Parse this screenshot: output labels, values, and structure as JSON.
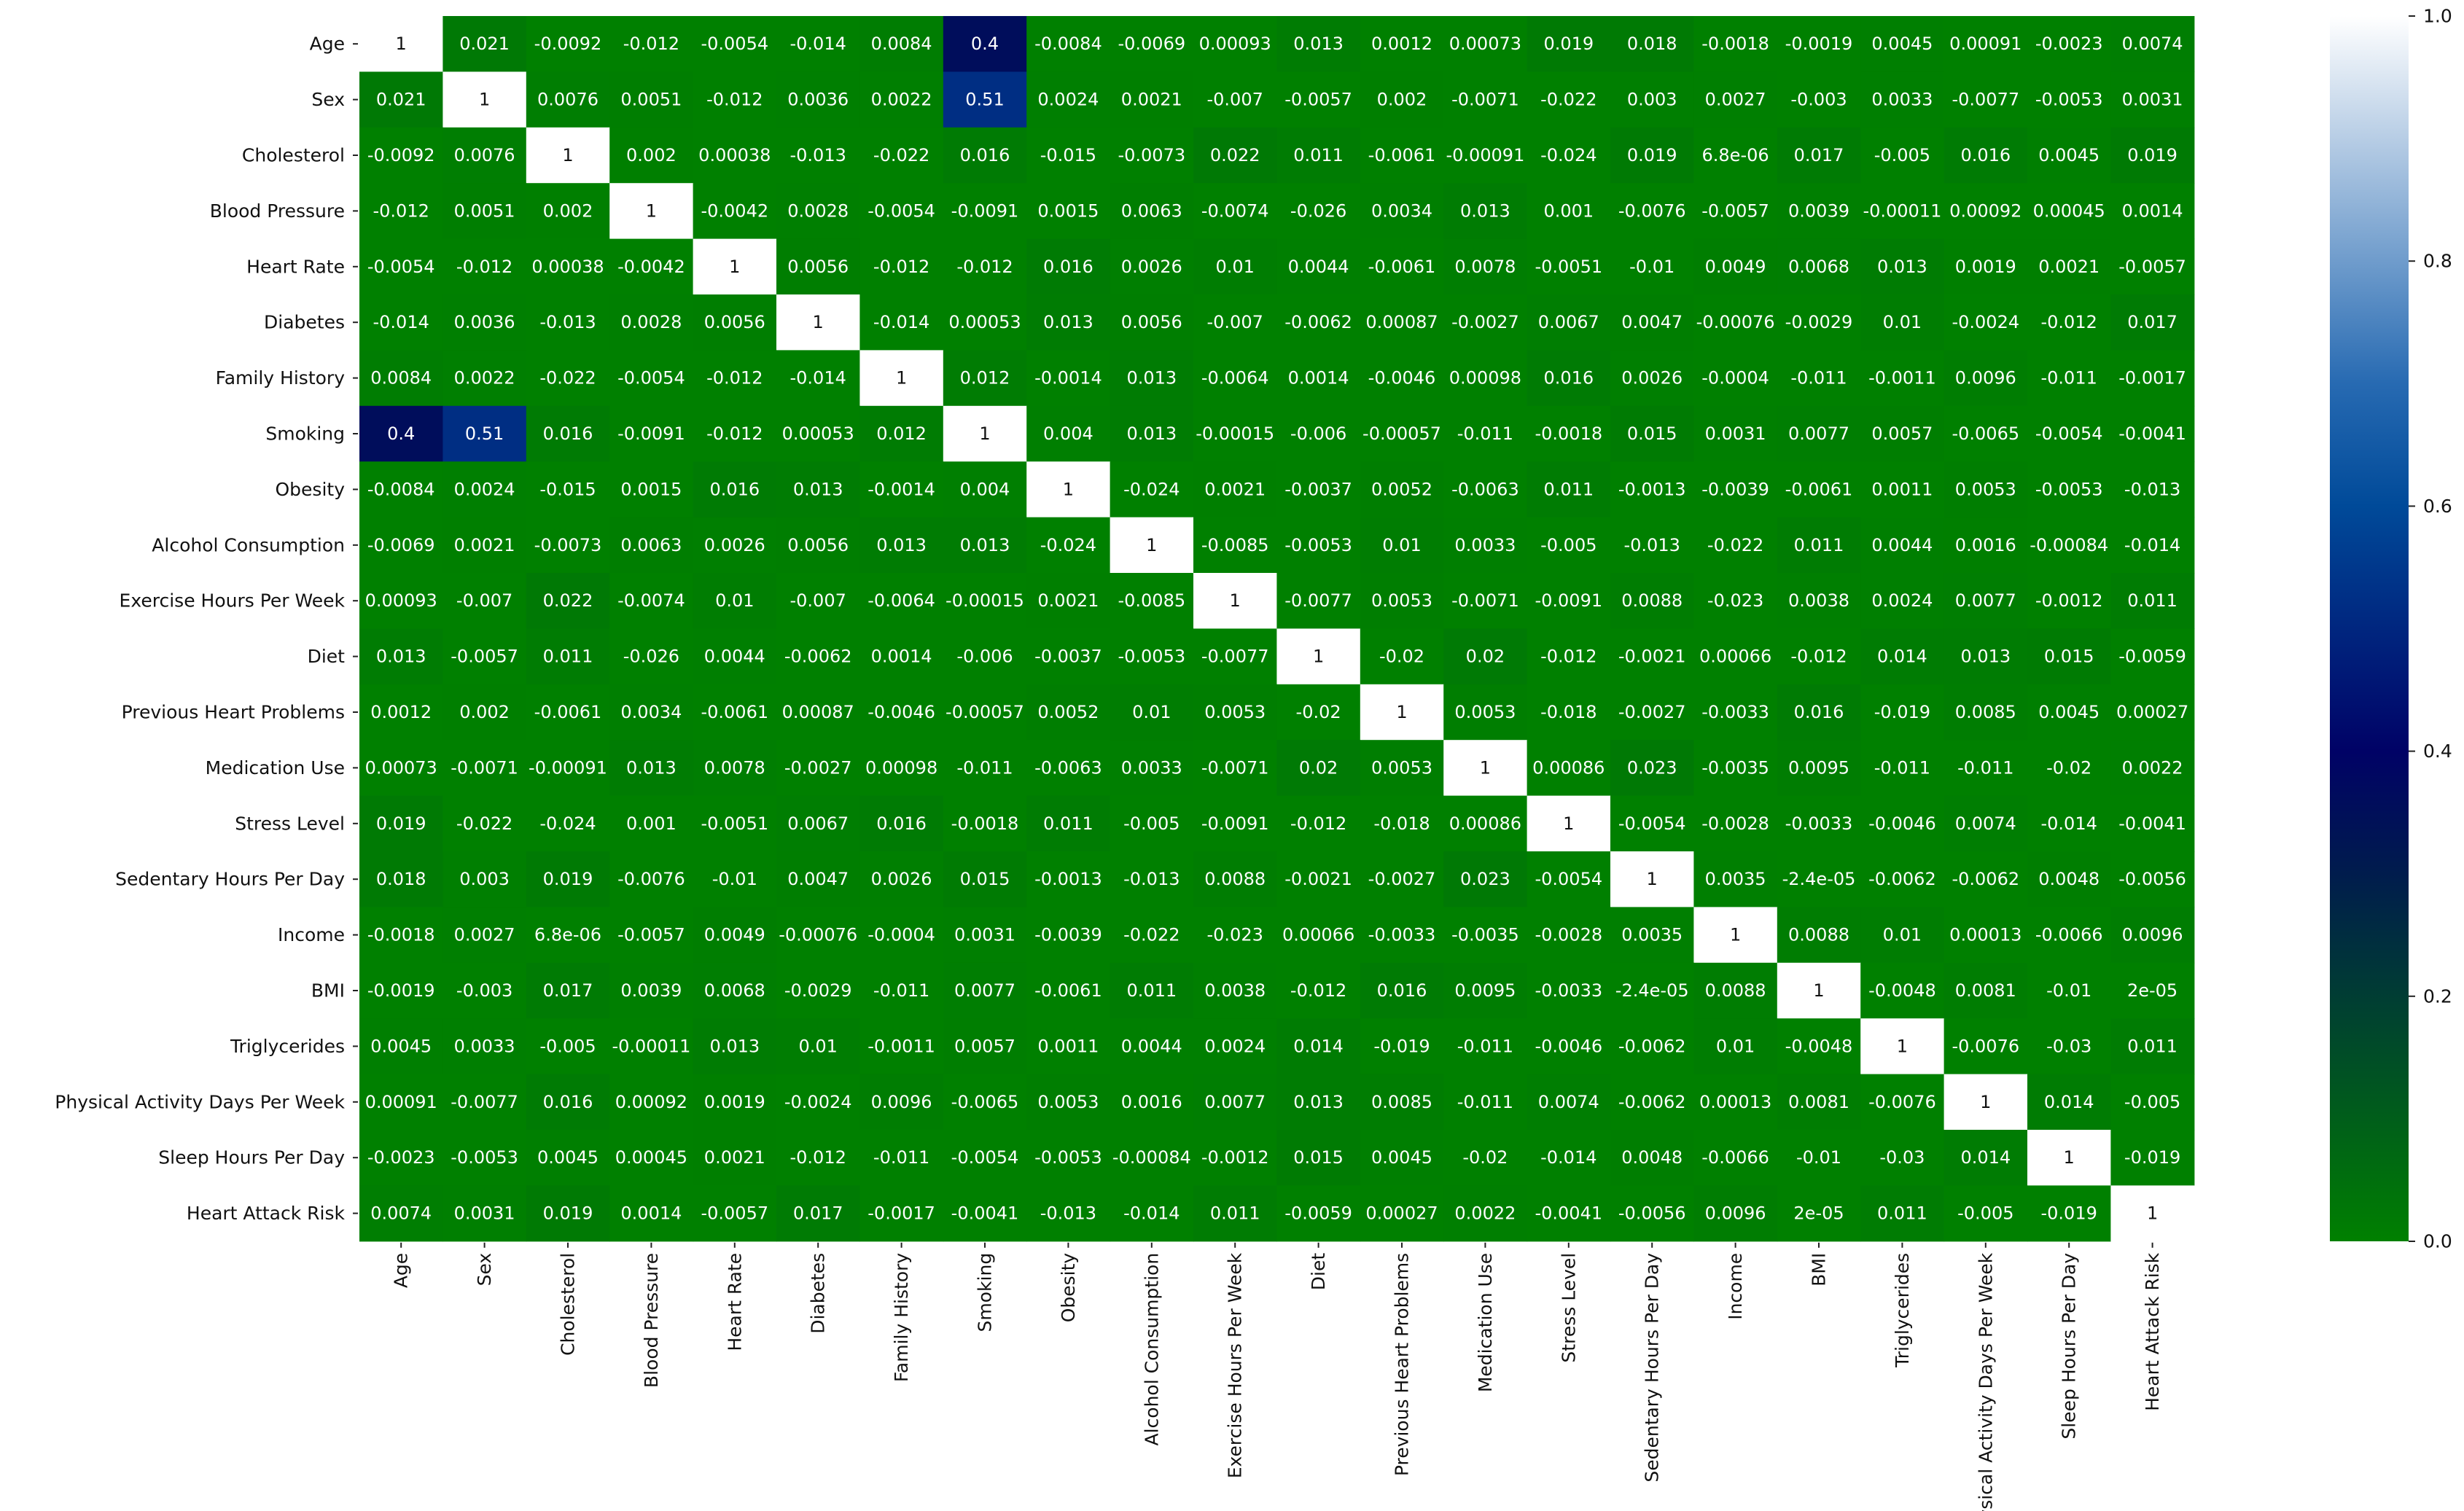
{
  "chart_data": {
    "type": "heatmap",
    "title": "",
    "variables": [
      "Age",
      "Sex",
      "Cholesterol",
      "Blood Pressure",
      "Heart Rate",
      "Diabetes",
      "Family History",
      "Smoking",
      "Obesity",
      "Alcohol Consumption",
      "Exercise Hours Per Week",
      "Diet",
      "Previous Heart Problems",
      "Medication Use",
      "Stress Level",
      "Sedentary Hours Per Day",
      "Income",
      "BMI",
      "Triglycerides",
      "Physical Activity Days Per Week",
      "Sleep Hours Per Day",
      "Heart Attack Risk"
    ],
    "cell_labels": [
      [
        "1",
        "0.021",
        "-0.0092",
        "-0.012",
        "-0.0054",
        "-0.014",
        "0.0084",
        "0.4",
        "-0.0084",
        "-0.0069",
        "0.00093",
        "0.013",
        "0.0012",
        "0.00073",
        "0.019",
        "0.018",
        "-0.0018",
        "-0.0019",
        "0.0045",
        "0.00091",
        "-0.0023",
        "0.0074"
      ],
      [
        "0.021",
        "1",
        "0.0076",
        "0.0051",
        "-0.012",
        "0.0036",
        "0.0022",
        "0.51",
        "0.0024",
        "0.0021",
        "-0.007",
        "-0.0057",
        "0.002",
        "-0.0071",
        "-0.022",
        "0.003",
        "0.0027",
        "-0.003",
        "0.0033",
        "-0.0077",
        "-0.0053",
        "0.0031"
      ],
      [
        "-0.0092",
        "0.0076",
        "1",
        "0.002",
        "0.00038",
        "-0.013",
        "-0.022",
        "0.016",
        "-0.015",
        "-0.0073",
        "0.022",
        "0.011",
        "-0.0061",
        "-0.00091",
        "-0.024",
        "0.019",
        "6.8e-06",
        "0.017",
        "-0.005",
        "0.016",
        "0.0045",
        "0.019"
      ],
      [
        "-0.012",
        "0.0051",
        "0.002",
        "1",
        "-0.0042",
        "0.0028",
        "-0.0054",
        "-0.0091",
        "0.0015",
        "0.0063",
        "-0.0074",
        "-0.026",
        "0.0034",
        "0.013",
        "0.001",
        "-0.0076",
        "-0.0057",
        "0.0039",
        "-0.00011",
        "0.00092",
        "0.00045",
        "0.0014"
      ],
      [
        "-0.0054",
        "-0.012",
        "0.00038",
        "-0.0042",
        "1",
        "0.0056",
        "-0.012",
        "-0.012",
        "0.016",
        "0.0026",
        "0.01",
        "0.0044",
        "-0.0061",
        "0.0078",
        "-0.0051",
        "-0.01",
        "0.0049",
        "0.0068",
        "0.013",
        "0.0019",
        "0.0021",
        "-0.0057"
      ],
      [
        "-0.014",
        "0.0036",
        "-0.013",
        "0.0028",
        "0.0056",
        "1",
        "-0.014",
        "0.00053",
        "0.013",
        "0.0056",
        "-0.007",
        "-0.0062",
        "0.00087",
        "-0.0027",
        "0.0067",
        "0.0047",
        "-0.00076",
        "-0.0029",
        "0.01",
        "-0.0024",
        "-0.012",
        "0.017"
      ],
      [
        "0.0084",
        "0.0022",
        "-0.022",
        "-0.0054",
        "-0.012",
        "-0.014",
        "1",
        "0.012",
        "-0.0014",
        "0.013",
        "-0.0064",
        "0.0014",
        "-0.0046",
        "0.00098",
        "0.016",
        "0.0026",
        "-0.0004",
        "-0.011",
        "-0.0011",
        "0.0096",
        "-0.011",
        "-0.0017"
      ],
      [
        "0.4",
        "0.51",
        "0.016",
        "-0.0091",
        "-0.012",
        "0.00053",
        "0.012",
        "1",
        "0.004",
        "0.013",
        "-0.00015",
        "-0.006",
        "-0.00057",
        "-0.011",
        "-0.0018",
        "0.015",
        "0.0031",
        "0.0077",
        "0.0057",
        "-0.0065",
        "-0.0054",
        "-0.0041"
      ],
      [
        "-0.0084",
        "0.0024",
        "-0.015",
        "0.0015",
        "0.016",
        "0.013",
        "-0.0014",
        "0.004",
        "1",
        "-0.024",
        "0.0021",
        "-0.0037",
        "0.0052",
        "-0.0063",
        "0.011",
        "-0.0013",
        "-0.0039",
        "-0.0061",
        "0.0011",
        "0.0053",
        "-0.0053",
        "-0.013"
      ],
      [
        "-0.0069",
        "0.0021",
        "-0.0073",
        "0.0063",
        "0.0026",
        "0.0056",
        "0.013",
        "0.013",
        "-0.024",
        "1",
        "-0.0085",
        "-0.0053",
        "0.01",
        "0.0033",
        "-0.005",
        "-0.013",
        "-0.022",
        "0.011",
        "0.0044",
        "0.0016",
        "-0.00084",
        "-0.014"
      ],
      [
        "0.00093",
        "-0.007",
        "0.022",
        "-0.0074",
        "0.01",
        "-0.007",
        "-0.0064",
        "-0.00015",
        "0.0021",
        "-0.0085",
        "1",
        "-0.0077",
        "0.0053",
        "-0.0071",
        "-0.0091",
        "0.0088",
        "-0.023",
        "0.0038",
        "0.0024",
        "0.0077",
        "-0.0012",
        "0.011"
      ],
      [
        "0.013",
        "-0.0057",
        "0.011",
        "-0.026",
        "0.0044",
        "-0.0062",
        "0.0014",
        "-0.006",
        "-0.0037",
        "-0.0053",
        "-0.0077",
        "1",
        "-0.02",
        "0.02",
        "-0.012",
        "-0.0021",
        "0.00066",
        "-0.012",
        "0.014",
        "0.013",
        "0.015",
        "-0.0059"
      ],
      [
        "0.0012",
        "0.002",
        "-0.0061",
        "0.0034",
        "-0.0061",
        "0.00087",
        "-0.0046",
        "-0.00057",
        "0.0052",
        "0.01",
        "0.0053",
        "-0.02",
        "1",
        "0.0053",
        "-0.018",
        "-0.0027",
        "-0.0033",
        "0.016",
        "-0.019",
        "0.0085",
        "0.0045",
        "0.00027"
      ],
      [
        "0.00073",
        "-0.0071",
        "-0.00091",
        "0.013",
        "0.0078",
        "-0.0027",
        "0.00098",
        "-0.011",
        "-0.0063",
        "0.0033",
        "-0.0071",
        "0.02",
        "0.0053",
        "1",
        "0.00086",
        "0.023",
        "-0.0035",
        "0.0095",
        "-0.011",
        "-0.011",
        "-0.02",
        "0.0022"
      ],
      [
        "0.019",
        "-0.022",
        "-0.024",
        "0.001",
        "-0.0051",
        "0.0067",
        "0.016",
        "-0.0018",
        "0.011",
        "-0.005",
        "-0.0091",
        "-0.012",
        "-0.018",
        "0.00086",
        "1",
        "-0.0054",
        "-0.0028",
        "-0.0033",
        "-0.0046",
        "0.0074",
        "-0.014",
        "-0.0041"
      ],
      [
        "0.018",
        "0.003",
        "0.019",
        "-0.0076",
        "-0.01",
        "0.0047",
        "0.0026",
        "0.015",
        "-0.0013",
        "-0.013",
        "0.0088",
        "-0.0021",
        "-0.0027",
        "0.023",
        "-0.0054",
        "1",
        "0.0035",
        "-2.4e-05",
        "-0.0062",
        "-0.0062",
        "0.0048",
        "-0.0056"
      ],
      [
        "-0.0018",
        "0.0027",
        "6.8e-06",
        "-0.0057",
        "0.0049",
        "-0.00076",
        "-0.0004",
        "0.0031",
        "-0.0039",
        "-0.022",
        "-0.023",
        "0.00066",
        "-0.0033",
        "-0.0035",
        "-0.0028",
        "0.0035",
        "1",
        "0.0088",
        "0.01",
        "0.00013",
        "-0.0066",
        "0.0096"
      ],
      [
        "-0.0019",
        "-0.003",
        "0.017",
        "0.0039",
        "0.0068",
        "-0.0029",
        "-0.011",
        "0.0077",
        "-0.0061",
        "0.011",
        "0.0038",
        "-0.012",
        "0.016",
        "0.0095",
        "-0.0033",
        "-2.4e-05",
        "0.0088",
        "1",
        "-0.0048",
        "0.0081",
        "-0.01",
        "2e-05"
      ],
      [
        "0.0045",
        "0.0033",
        "-0.005",
        "-0.00011",
        "0.013",
        "0.01",
        "-0.0011",
        "0.0057",
        "0.0011",
        "0.0044",
        "0.0024",
        "0.014",
        "-0.019",
        "-0.011",
        "-0.0046",
        "-0.0062",
        "0.01",
        "-0.0048",
        "1",
        "-0.0076",
        "-0.03",
        "0.011"
      ],
      [
        "0.00091",
        "-0.0077",
        "0.016",
        "0.00092",
        "0.0019",
        "-0.0024",
        "0.0096",
        "-0.0065",
        "0.0053",
        "0.0016",
        "0.0077",
        "0.013",
        "0.0085",
        "-0.011",
        "0.0074",
        "-0.0062",
        "0.00013",
        "0.0081",
        "-0.0076",
        "1",
        "0.014",
        "-0.005"
      ],
      [
        "-0.0023",
        "-0.0053",
        "0.0045",
        "0.00045",
        "0.0021",
        "-0.012",
        "-0.011",
        "-0.0054",
        "-0.0053",
        "-0.00084",
        "-0.0012",
        "0.015",
        "0.0045",
        "-0.02",
        "-0.014",
        "0.0048",
        "-0.0066",
        "-0.01",
        "-0.03",
        "0.014",
        "1",
        "-0.019"
      ],
      [
        "0.0074",
        "0.0031",
        "0.019",
        "0.0014",
        "-0.0057",
        "0.017",
        "-0.0017",
        "-0.0041",
        "-0.013",
        "-0.014",
        "0.011",
        "-0.0059",
        "0.00027",
        "0.0022",
        "-0.0041",
        "-0.0056",
        "0.0096",
        "2e-05",
        "0.011",
        "-0.005",
        "-0.019",
        "1"
      ]
    ],
    "colorbar": {
      "colormap": "ocean",
      "vmin": 0.0,
      "vmax": 1.0,
      "ticks": [
        "0.0",
        "0.2",
        "0.4",
        "0.6",
        "0.8",
        "1.0"
      ]
    },
    "colors": {
      "low": "#008000",
      "mid_dark": "#000050",
      "mid": "#0066aa",
      "high": "#ffffff"
    }
  }
}
